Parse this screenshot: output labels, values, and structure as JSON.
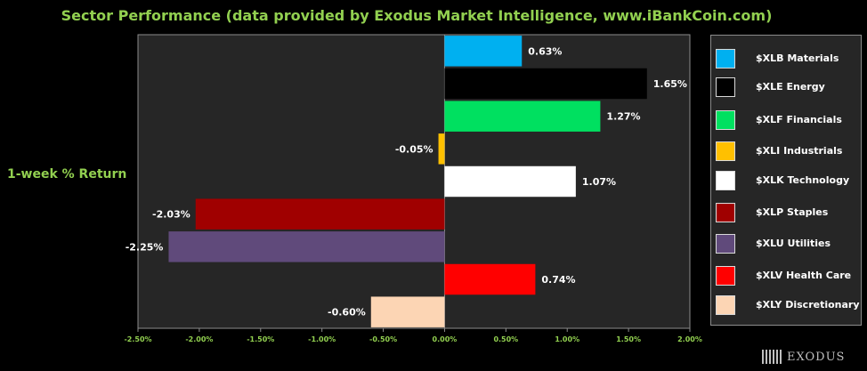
{
  "chart_data": {
    "type": "bar",
    "orientation": "horizontal",
    "title": "Sector Performance (data provided by Exodus Market Intelligence, www.iBankCoin.com)",
    "ylabel": "1-week % Return",
    "xlim": [
      -2.5,
      2.0
    ],
    "xticks": [
      "-2.50%",
      "-2.00%",
      "-1.50%",
      "-1.00%",
      "-0.50%",
      "0.00%",
      "0.50%",
      "1.00%",
      "1.50%",
      "2.00%"
    ],
    "grid": false,
    "legend_position": "right",
    "categories": [
      "$XLB Materials",
      "$XLE Energy",
      "$XLF Financials",
      "$XLI Industrials",
      "$XLK Technology",
      "$XLP Staples",
      "$XLU Utilities",
      "$XLV Health Care",
      "$XLY Discretionary"
    ],
    "values": [
      0.63,
      1.65,
      1.27,
      -0.05,
      1.07,
      -2.03,
      -2.25,
      0.74,
      -0.6
    ],
    "data_labels": [
      "0.63%",
      "1.65%",
      "1.27%",
      "-0.05%",
      "1.07%",
      "-2.03%",
      "-2.25%",
      "0.74%",
      "-0.60%"
    ],
    "colors": [
      "#00b0f0",
      "#000000",
      "#00e060",
      "#ffc000",
      "#ffffff",
      "#a00000",
      "#604a7b",
      "#ff0000",
      "#fcd5b4"
    ]
  },
  "logo": {
    "text": "EXODUS"
  },
  "theme": {
    "accent": "#92d050",
    "plot_bg": "#262626",
    "page_bg": "#000000",
    "axis_color": "#8c8c8c"
  }
}
